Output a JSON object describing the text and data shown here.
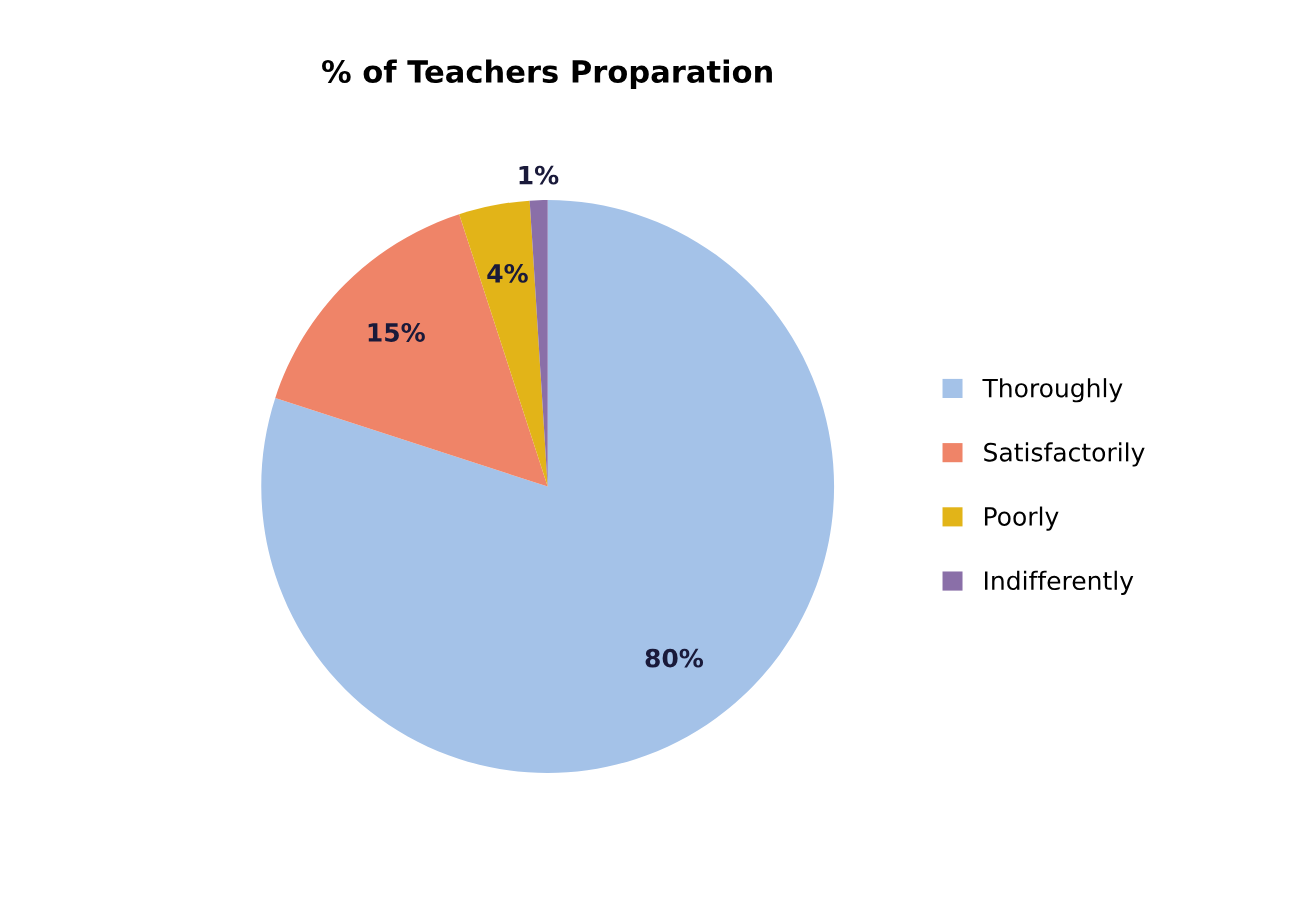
{
  "chart_data": {
    "type": "pie",
    "title": "% of Teachers Proparation",
    "categories": [
      "Thoroughly",
      "Satisfactorily",
      "Poorly",
      "Indifferently"
    ],
    "values": [
      80,
      15,
      4,
      1
    ],
    "value_labels": [
      "80%",
      "15%",
      "4%",
      "1%"
    ],
    "colors": [
      "#a4c2e8",
      "#ef8468",
      "#e2b418",
      "#8a6fa8"
    ],
    "legend": "right"
  }
}
